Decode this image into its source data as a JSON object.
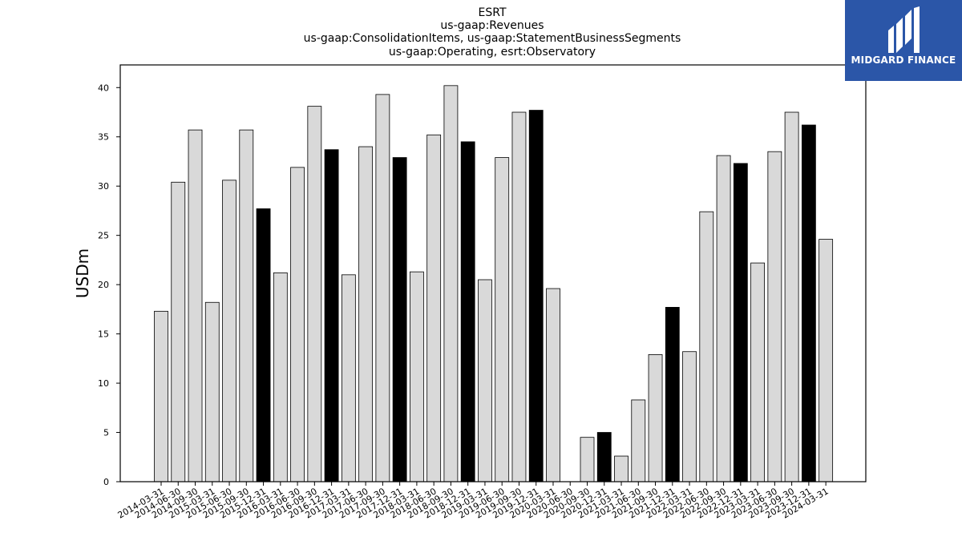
{
  "brand": {
    "name": "MIDGARD FINANCE",
    "bg_color": "#2b56a8",
    "icon": "midgard-logo-icon"
  },
  "colors": {
    "bar_normal": "#d9d9d9",
    "bar_highlight": "#000000",
    "bar_edge": "#000000"
  },
  "chart_data": {
    "type": "bar",
    "title_lines": [
      "ESRT",
      "us-gaap:Revenues",
      "us-gaap:ConsolidationItems, us-gaap:StatementBusinessSegments",
      "us-gaap:Operating, esrt:Observatory"
    ],
    "xlabel": "",
    "ylabel": "USDm",
    "ylim": [
      0,
      42.3
    ],
    "yticks": [
      0,
      5,
      10,
      15,
      20,
      25,
      30,
      35,
      40
    ],
    "grid": false,
    "categories": [
      "2014-03-31",
      "2014-06-30",
      "2014-09-30",
      "2015-03-31",
      "2015-06-30",
      "2015-09-30",
      "2015-12-31",
      "2016-03-31",
      "2016-06-30",
      "2016-09-30",
      "2016-12-31",
      "2017-03-31",
      "2017-06-30",
      "2017-09-30",
      "2017-12-31",
      "2018-03-31",
      "2018-06-30",
      "2018-09-30",
      "2018-12-31",
      "2019-03-31",
      "2019-06-30",
      "2019-09-30",
      "2019-12-31",
      "2020-03-31",
      "2020-06-30",
      "2020-09-30",
      "2020-12-31",
      "2021-03-31",
      "2021-06-30",
      "2021-09-30",
      "2021-12-31",
      "2022-03-31",
      "2022-06-30",
      "2022-09-30",
      "2022-12-31",
      "2023-03-31",
      "2023-06-30",
      "2023-09-30",
      "2023-12-31",
      "2024-03-31"
    ],
    "values": [
      17.3,
      30.4,
      35.7,
      18.2,
      30.6,
      35.7,
      27.7,
      21.2,
      31.9,
      38.1,
      33.7,
      21.0,
      34.0,
      39.3,
      32.9,
      21.3,
      35.2,
      40.2,
      34.5,
      20.5,
      32.9,
      37.5,
      37.7,
      19.6,
      0.0,
      4.5,
      5.0,
      2.6,
      8.3,
      12.9,
      17.7,
      13.2,
      27.4,
      33.1,
      32.3,
      22.2,
      33.5,
      37.5,
      36.2,
      24.6
    ],
    "highlight": [
      false,
      false,
      false,
      false,
      false,
      false,
      true,
      false,
      false,
      false,
      true,
      false,
      false,
      false,
      true,
      false,
      false,
      false,
      true,
      false,
      false,
      false,
      true,
      false,
      false,
      false,
      true,
      false,
      false,
      false,
      true,
      false,
      false,
      false,
      true,
      false,
      false,
      false,
      true,
      false
    ]
  }
}
